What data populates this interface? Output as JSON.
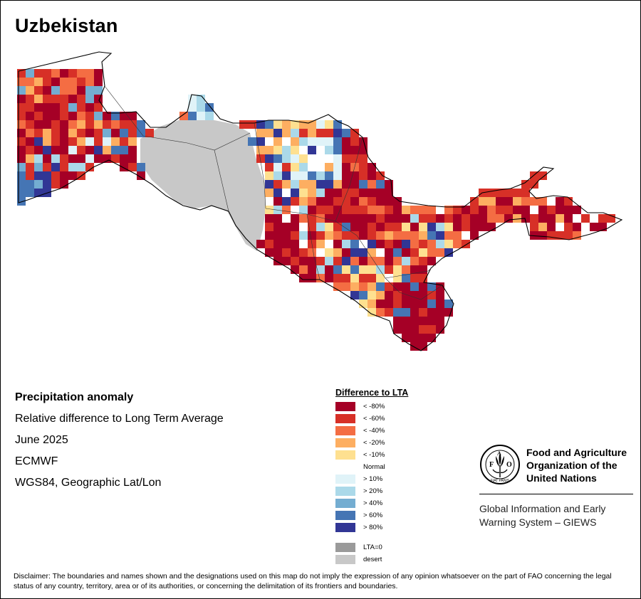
{
  "map": {
    "title": "Uzbekistan",
    "info": {
      "heading": "Precipitation anomaly",
      "subtitle": "Relative difference to Long Term Average",
      "period": "June 2025",
      "source": "ECMWF",
      "projection": "WGS84, Geographic Lat/Lon"
    },
    "legend": {
      "title": "Difference to LTA",
      "classes": [
        {
          "label": "< -80%",
          "color": "#a50026"
        },
        {
          "label": "< -60%",
          "color": "#d73027"
        },
        {
          "label": "< -40%",
          "color": "#f46d43"
        },
        {
          "label": "< -20%",
          "color": "#fdae61"
        },
        {
          "label": "< -10%",
          "color": "#fee090"
        },
        {
          "label": "Normal",
          "color": "#ffffff"
        },
        {
          "label": "> 10%",
          "color": "#e0f3f8"
        },
        {
          "label": "> 20%",
          "color": "#abd9e9"
        },
        {
          "label": "> 40%",
          "color": "#74add1"
        },
        {
          "label": "> 60%",
          "color": "#4575b4"
        },
        {
          "label": "> 80%",
          "color": "#313695"
        }
      ],
      "extra": [
        {
          "label": "LTA=0",
          "color": "#9a9a9a"
        },
        {
          "label": "desert",
          "color": "#c8c8c8"
        }
      ]
    },
    "organization": {
      "logo_text": "FAO",
      "logo_motto": "FIAT PANIS",
      "name": "Food and Agriculture Organization of the United Nations",
      "system": "Global Information and Early Warning System – GIEWS"
    },
    "disclaimer": "Disclaimer: The boundaries and names shown and the designations used on this map do not imply the expression of any opinion whatsoever on the part of FAO concerning the legal status of any country, territory, area or of its authorities, or concerning the delimitation of its frontiers and boundaries."
  }
}
